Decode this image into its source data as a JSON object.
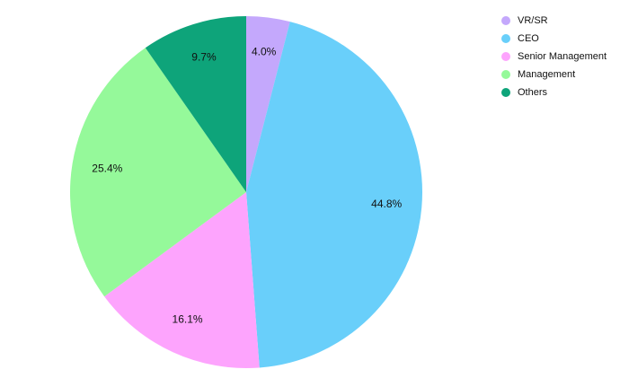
{
  "chart_data": {
    "type": "pie",
    "categories": [
      "VR/SR",
      "CEO",
      "Senior Management",
      "Management",
      "Others"
    ],
    "values": [
      4.0,
      44.8,
      16.1,
      25.4,
      9.7
    ],
    "value_labels": [
      "4.0%",
      "44.8%",
      "16.1%",
      "25.4%",
      "9.7%"
    ],
    "colors": [
      "#c4a8fc",
      "#69cffa",
      "#fda4fd",
      "#95f99a",
      "#0ea47a"
    ],
    "legend": "top-right"
  }
}
